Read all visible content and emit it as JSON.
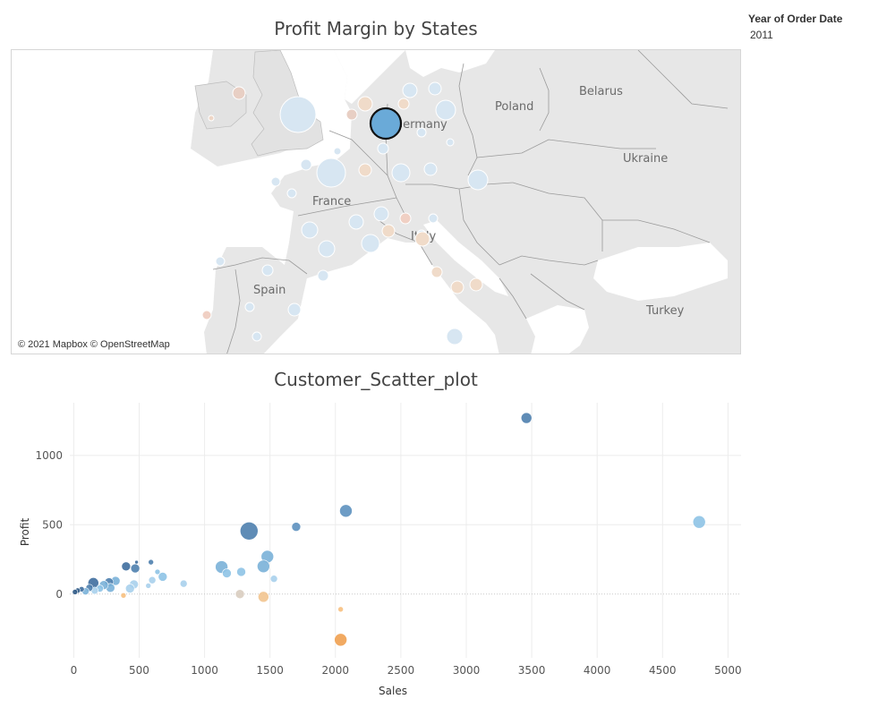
{
  "filter": {
    "label": "Year of Order Date",
    "value": "2011"
  },
  "map": {
    "title": "Profit Margin by States",
    "attribution": "© 2021 Mapbox © OpenStreetMap",
    "labels": [
      "Poland",
      "Belarus",
      "Ukraine",
      "France",
      "Spain",
      "Turkey",
      "Italy",
      "Germany"
    ],
    "colors": {
      "land": "#e7e7e7",
      "sea": "#ffffff",
      "border": "#9a9a9a",
      "highlight": "#6aaad8",
      "highlight_stroke": "#111111"
    }
  },
  "chart_data": {
    "type": "scatter",
    "title": "Customer_Scatter_plot",
    "xlabel": "Sales",
    "ylabel": "Profit",
    "xlim": [
      -30,
      5100
    ],
    "ylim": [
      -460,
      1380
    ],
    "x_ticks": [
      0,
      500,
      1000,
      1500,
      2000,
      2500,
      3000,
      3500,
      4000,
      4500,
      5000
    ],
    "y_ticks": [
      0,
      500,
      1000
    ],
    "grid": true,
    "points": [
      {
        "x": 3460,
        "y": 1270,
        "size": 6,
        "color": "#4e7fae"
      },
      {
        "x": 4780,
        "y": 520,
        "size": 7,
        "color": "#8ec3e6"
      },
      {
        "x": 2080,
        "y": 600,
        "size": 7,
        "color": "#5d91bf"
      },
      {
        "x": 1700,
        "y": 485,
        "size": 5,
        "color": "#5d91bf"
      },
      {
        "x": 1340,
        "y": 455,
        "size": 10,
        "color": "#4e7fae"
      },
      {
        "x": 1480,
        "y": 270,
        "size": 7,
        "color": "#7ab1d8"
      },
      {
        "x": 1450,
        "y": 200,
        "size": 7,
        "color": "#7ab1d8"
      },
      {
        "x": 1530,
        "y": 110,
        "size": 4,
        "color": "#a9d0ec"
      },
      {
        "x": 1130,
        "y": 195,
        "size": 7,
        "color": "#7ab1d8"
      },
      {
        "x": 1170,
        "y": 150,
        "size": 5,
        "color": "#8ec3e6"
      },
      {
        "x": 1280,
        "y": 160,
        "size": 5,
        "color": "#8ec3e6"
      },
      {
        "x": 1270,
        "y": 0,
        "size": 5,
        "color": "#d9cdc0"
      },
      {
        "x": 1450,
        "y": -20,
        "size": 6,
        "color": "#f2c48f"
      },
      {
        "x": 2040,
        "y": -110,
        "size": 3,
        "color": "#f7c07f"
      },
      {
        "x": 2040,
        "y": -330,
        "size": 7,
        "color": "#f0a050"
      },
      {
        "x": 840,
        "y": 75,
        "size": 4,
        "color": "#a9d0ec"
      },
      {
        "x": 680,
        "y": 125,
        "size": 5,
        "color": "#8ec3e6"
      },
      {
        "x": 640,
        "y": 160,
        "size": 3,
        "color": "#8ec3e6"
      },
      {
        "x": 590,
        "y": 230,
        "size": 3,
        "color": "#4e7fae"
      },
      {
        "x": 600,
        "y": 100,
        "size": 4,
        "color": "#a9d0ec"
      },
      {
        "x": 570,
        "y": 60,
        "size": 3,
        "color": "#a9d0ec"
      },
      {
        "x": 480,
        "y": 230,
        "size": 2,
        "color": "#3f6e9e"
      },
      {
        "x": 470,
        "y": 185,
        "size": 5,
        "color": "#4e7fae"
      },
      {
        "x": 400,
        "y": 200,
        "size": 5,
        "color": "#3f6e9e"
      },
      {
        "x": 460,
        "y": 70,
        "size": 5,
        "color": "#a9d0ec"
      },
      {
        "x": 430,
        "y": 40,
        "size": 5,
        "color": "#a9d0ec"
      },
      {
        "x": 380,
        "y": -10,
        "size": 3,
        "color": "#f7c07f"
      },
      {
        "x": 320,
        "y": 95,
        "size": 5,
        "color": "#7ab1d8"
      },
      {
        "x": 270,
        "y": 85,
        "size": 5,
        "color": "#4e7fae"
      },
      {
        "x": 280,
        "y": 45,
        "size": 5,
        "color": "#7ab1d8"
      },
      {
        "x": 230,
        "y": 65,
        "size": 5,
        "color": "#7ab1d8"
      },
      {
        "x": 150,
        "y": 80,
        "size": 6,
        "color": "#3f6e9e"
      },
      {
        "x": 200,
        "y": 40,
        "size": 4,
        "color": "#8ec3e6"
      },
      {
        "x": 160,
        "y": 25,
        "size": 4,
        "color": "#a9d0ec"
      },
      {
        "x": 120,
        "y": 45,
        "size": 4,
        "color": "#4e7fae"
      },
      {
        "x": 90,
        "y": 20,
        "size": 4,
        "color": "#7ab1d8"
      },
      {
        "x": 60,
        "y": 35,
        "size": 3,
        "color": "#3f6e9e"
      },
      {
        "x": 30,
        "y": 25,
        "size": 3,
        "color": "#2f5a86"
      },
      {
        "x": 10,
        "y": 15,
        "size": 3,
        "color": "#2f5a86"
      }
    ]
  }
}
